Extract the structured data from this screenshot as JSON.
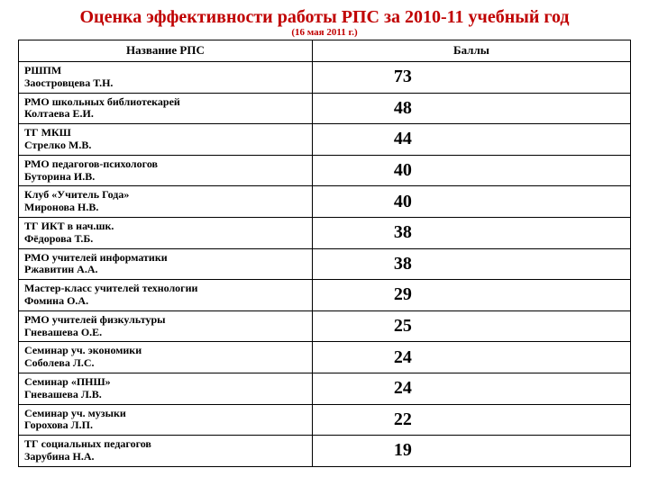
{
  "title": "Оценка эффективности работы РПС за 2010-11 учебный год",
  "subtitle": "(16 мая 2011 г.)",
  "title_color": "#c00000",
  "text_color": "#000000",
  "background_color": "#ffffff",
  "border_color": "#000000",
  "columns": [
    "Название РПС",
    "Баллы"
  ],
  "column_widths_pct": [
    48,
    52
  ],
  "header_fontsize": 13,
  "cell_name_fontsize": 12,
  "cell_score_fontsize": 20,
  "rows": [
    {
      "name_line1": "РШПМ",
      "name_line2": "Заостровцева Т.Н.",
      "score": "73"
    },
    {
      "name_line1": "РМО школьных библиотекарей",
      "name_line2": "Колтаева Е.И.",
      "score": "48"
    },
    {
      "name_line1": "ТГ МКШ",
      "name_line2": "Стрелко М.В.",
      "score": "44"
    },
    {
      "name_line1": "РМО педагогов-психологов",
      "name_line2": "Буторина И.В.",
      "score": "40"
    },
    {
      "name_line1": "Клуб «Учитель Года»",
      "name_line2": "Миронова Н.В.",
      "score": "40"
    },
    {
      "name_line1": "ТГ ИКТ в нач.шк.",
      "name_line2": "Фёдорова Т.Б.",
      "score": "38"
    },
    {
      "name_line1": "РМО учителей информатики",
      "name_line2": "Ржавитин А.А.",
      "score": "38"
    },
    {
      "name_line1": "Мастер-класс учителей технологии",
      "name_line2": "Фомина О.А.",
      "score": "29"
    },
    {
      "name_line1": "РМО учителей физкультуры",
      "name_line2": "Гневашева О.Е.",
      "score": "25"
    },
    {
      "name_line1": "Семинар уч. экономики",
      "name_line2": "Соболева Л.С.",
      "score": "24"
    },
    {
      "name_line1": "Семинар «ПНШ»",
      "name_line2": "Гневашева Л.В.",
      "score": "24"
    },
    {
      "name_line1": "Семинар уч. музыки",
      "name_line2": "Горохова Л.П.",
      "score": "22"
    },
    {
      "name_line1": "ТГ социальных педагогов",
      "name_line2": "Зарубина Н.А.",
      "score": "19"
    }
  ]
}
